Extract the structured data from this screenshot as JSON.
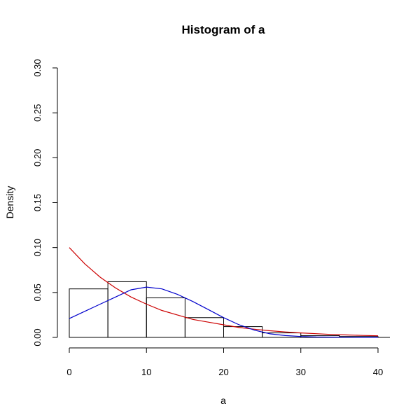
{
  "chart_data": {
    "type": "bar",
    "title": "Histogram of a",
    "xlabel": "a",
    "ylabel": "Density",
    "xlim": [
      0,
      40
    ],
    "ylim": [
      0,
      0.3
    ],
    "x_ticks": [
      0,
      10,
      20,
      30,
      40
    ],
    "x_tick_labels": [
      "0",
      "10",
      "20",
      "30",
      "40"
    ],
    "y_ticks": [
      0,
      0.05,
      0.1,
      0.15,
      0.2,
      0.25,
      0.3
    ],
    "y_tick_labels": [
      "0.00",
      "0.05",
      "0.10",
      "0.15",
      "0.20",
      "0.25",
      "0.30"
    ],
    "grid": false,
    "bins": [
      {
        "x0": 0,
        "x1": 5,
        "density": 0.054
      },
      {
        "x0": 5,
        "x1": 10,
        "density": 0.062
      },
      {
        "x0": 10,
        "x1": 15,
        "density": 0.044
      },
      {
        "x0": 15,
        "x1": 20,
        "density": 0.022
      },
      {
        "x0": 20,
        "x1": 25,
        "density": 0.012
      },
      {
        "x0": 25,
        "x1": 30,
        "density": 0.005
      },
      {
        "x0": 30,
        "x1": 35,
        "density": 0.002
      },
      {
        "x0": 35,
        "x1": 40,
        "density": 0.001
      }
    ],
    "series": [
      {
        "color": "#cc0000",
        "type": "line",
        "x": [
          0,
          2,
          4,
          6,
          8,
          10,
          12,
          14,
          16,
          18,
          20,
          22,
          24,
          26,
          28,
          30,
          32,
          34,
          36,
          38,
          40
        ],
        "y": [
          0.1,
          0.082,
          0.067,
          0.055,
          0.045,
          0.037,
          0.03,
          0.025,
          0.02,
          0.017,
          0.014,
          0.011,
          0.0091,
          0.0074,
          0.0061,
          0.005,
          0.0041,
          0.0033,
          0.0027,
          0.0022,
          0.0018
        ]
      },
      {
        "color": "#0000cc",
        "type": "line",
        "x": [
          0,
          2,
          4,
          6,
          8,
          10,
          12,
          14,
          16,
          18,
          20,
          22,
          24,
          26,
          28,
          30,
          32,
          34,
          36,
          38,
          40
        ],
        "y": [
          0.021,
          0.029,
          0.037,
          0.045,
          0.053,
          0.056,
          0.054,
          0.048,
          0.04,
          0.031,
          0.022,
          0.014,
          0.008,
          0.004,
          0.002,
          0.001,
          0.0005,
          0.0003,
          0.0002,
          0.0001,
          0.0001
        ]
      }
    ]
  }
}
